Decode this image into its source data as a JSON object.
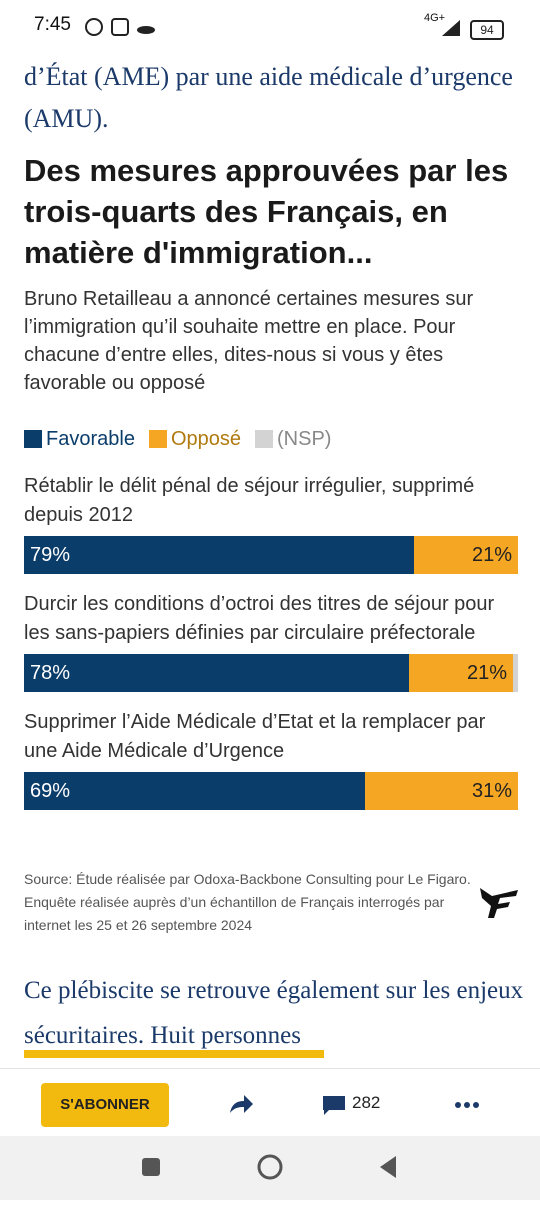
{
  "status_bar": {
    "time": "7:45",
    "network": "4G+",
    "battery": "94"
  },
  "article": {
    "intro": "d’État (AME) par une aide médicale d’urgence (AMU).",
    "continuation": "Ce plébiscite se retrouve également sur les enjeux sécuritaires. Huit personnes"
  },
  "chart_data": {
    "type": "bar",
    "stacked": true,
    "orientation": "horizontal",
    "title": "Des mesures approuvées par les trois-quarts des Français, en matière d'immigration...",
    "subtitle": "Bruno Retailleau a annoncé certaines mesures sur l’immigration qu’il souhaite mettre en place. Pour chacune d’entre elles, dites-nous si vous y êtes favorable ou opposé",
    "categories": [
      "Rétablir le délit pénal de séjour irrégulier, supprimé depuis 2012",
      "Durcir les conditions d’octroi des titres de séjour pour les sans-papiers définies par circulaire préfectorale",
      "Supprimer l’Aide Médicale d’Etat et la remplacer par une Aide Médicale d’Urgence"
    ],
    "series": [
      {
        "name": "Favorable",
        "color": "#0b3d6b",
        "values": [
          79,
          78,
          69
        ],
        "value_labels": [
          "79%",
          "78%",
          "69%"
        ]
      },
      {
        "name": "Opposé",
        "color": "#f5a623",
        "values": [
          21,
          21,
          31
        ],
        "value_labels": [
          "21%",
          "21%",
          "31%"
        ]
      },
      {
        "name": "(NSP)",
        "color": "#d3d3d3",
        "values": [
          0,
          1,
          0
        ]
      }
    ],
    "xlim": [
      0,
      100
    ],
    "source": "Source: Étude réalisée par Odoxa-Backbone Consulting pour Le Figaro. Enquête réalisée auprès d’un échantillon de Français interrogés par internet les 25 et 26 septembre 2024"
  },
  "toolbar": {
    "subscribe": "S'ABONNER",
    "comments": "282"
  }
}
